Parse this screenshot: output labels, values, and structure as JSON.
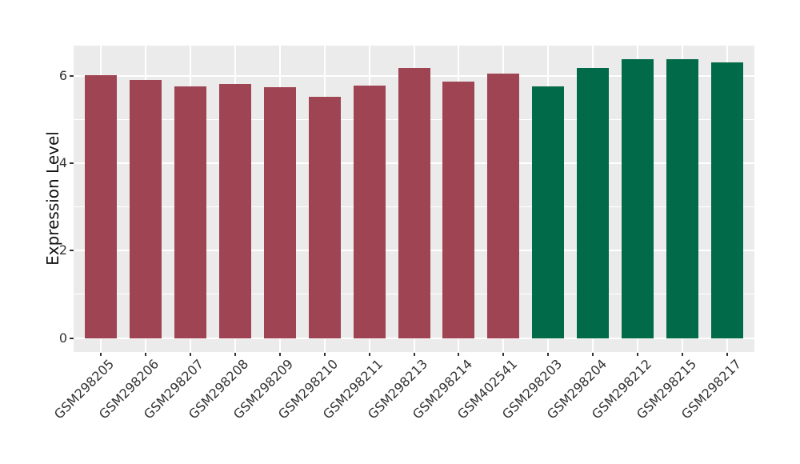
{
  "chart_data": {
    "type": "bar",
    "title": "",
    "xlabel": "",
    "ylabel": "Expression Level",
    "categories": [
      "GSM298205",
      "GSM298206",
      "GSM298207",
      "GSM298208",
      "GSM298209",
      "GSM298210",
      "GSM298211",
      "GSM298213",
      "GSM298214",
      "GSM402541",
      "GSM298203",
      "GSM298204",
      "GSM298212",
      "GSM298215",
      "GSM298217"
    ],
    "values": [
      6.02,
      5.9,
      5.75,
      5.82,
      5.73,
      5.51,
      5.78,
      6.17,
      5.87,
      6.05,
      5.75,
      6.17,
      6.38,
      6.38,
      6.31
    ],
    "bar_colors": [
      "#9e4452",
      "#9e4452",
      "#9e4452",
      "#9e4452",
      "#9e4452",
      "#9e4452",
      "#9e4452",
      "#9e4452",
      "#9e4452",
      "#9e4452",
      "#016a48",
      "#016a48",
      "#016a48",
      "#016a48",
      "#016a48"
    ],
    "yticks": [
      0,
      2,
      4,
      6
    ],
    "minor_yticks": [
      1,
      3,
      5
    ],
    "ylim": [
      -0.32,
      6.69
    ],
    "grid": true,
    "legend": "none",
    "x_label_rotation_deg": 45,
    "colors": {
      "panel_background": "#ebebeb",
      "gridline": "#ffffff",
      "group_left": "#9e4452",
      "group_right": "#016a48",
      "tick_text": "#333333",
      "axis_title_text": "#111111"
    }
  }
}
